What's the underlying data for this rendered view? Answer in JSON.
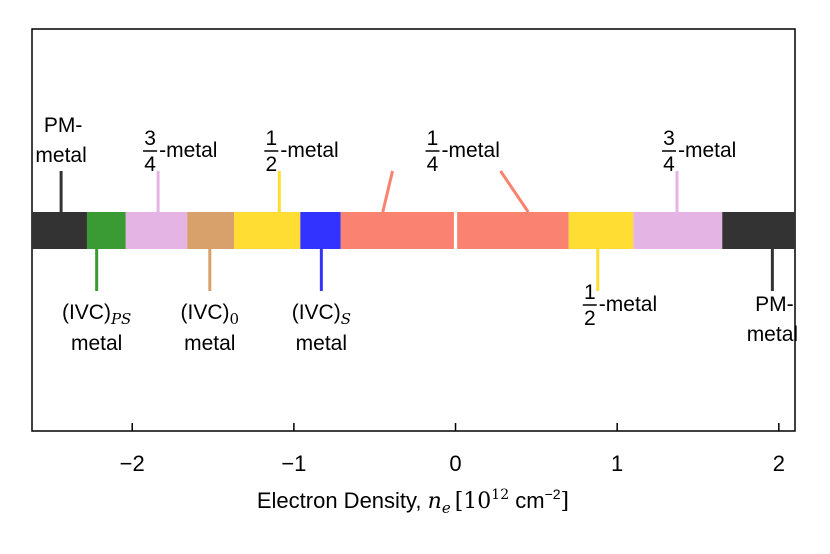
{
  "chart_data": {
    "type": "bar",
    "xlabel_text": "Electron Density, ",
    "xlabel_var": "n",
    "xlabel_sub": "e",
    "xlabel_unit_open": "[10",
    "xlabel_unit_exp": "12",
    "xlabel_unit_mid": " cm",
    "xlabel_unit_exp2": "−2",
    "xlabel_unit_close": "]",
    "xlim": [
      -2.62,
      2.1
    ],
    "ylim": [
      0,
      1
    ],
    "grid": false,
    "ticks": [
      {
        "value": -2,
        "label": "−2"
      },
      {
        "value": -1,
        "label": "−1"
      },
      {
        "value": 0,
        "label": "0"
      },
      {
        "value": 1,
        "label": "1"
      },
      {
        "value": 2,
        "label": "2"
      }
    ],
    "segments": [
      {
        "start": -2.62,
        "end": -2.28,
        "color": "#333333",
        "phase": "PM-metal"
      },
      {
        "start": -2.28,
        "end": -2.04,
        "color": "#3a9a34",
        "phase": "(IVC)PS metal"
      },
      {
        "start": -2.04,
        "end": -1.66,
        "color": "#e4b4e4",
        "phase": "3/4-metal"
      },
      {
        "start": -1.66,
        "end": -1.37,
        "color": "#d8a06a",
        "phase": "(IVC)0 metal"
      },
      {
        "start": -1.37,
        "end": -0.96,
        "color": "#ffdd33",
        "phase": "1/2-metal"
      },
      {
        "start": -0.96,
        "end": -0.71,
        "color": "#3333ff",
        "phase": "(IVC)S metal"
      },
      {
        "start": -0.71,
        "end": -0.01,
        "color": "#fa8270",
        "phase": "1/4-metal"
      },
      {
        "start": 0.01,
        "end": 0.7,
        "color": "#fa8270",
        "phase": "1/4-metal"
      },
      {
        "start": 0.7,
        "end": 1.1,
        "color": "#ffdd33",
        "phase": "1/2-metal"
      },
      {
        "start": 1.1,
        "end": 1.65,
        "color": "#e4b4e4",
        "phase": "3/4-metal"
      },
      {
        "start": 1.65,
        "end": 2.1,
        "color": "#333333",
        "phase": "PM-metal"
      }
    ],
    "annotations": [
      {
        "id": "pm-left",
        "side": "above",
        "x": -2.44,
        "color": "#333333",
        "line1": "PM-",
        "line2": "metal"
      },
      {
        "id": "three-quarter-left",
        "side": "above",
        "x": -1.84,
        "color": "#e4b4e4",
        "num": "3",
        "den": "4",
        "suffix": "-metal"
      },
      {
        "id": "half-left",
        "side": "above",
        "x": -1.09,
        "color": "#ffdd33",
        "num": "1",
        "den": "2",
        "suffix": "-metal"
      },
      {
        "id": "quarter",
        "side": "above",
        "x": 0.0,
        "color": "#fa8270",
        "num": "1",
        "den": "4",
        "suffix": "-metal"
      },
      {
        "id": "three-quarter-right",
        "side": "above",
        "x": 1.37,
        "color": "#e4b4e4",
        "num": "3",
        "den": "4",
        "suffix": "-metal"
      },
      {
        "id": "ivc-ps",
        "side": "below",
        "x": -2.22,
        "color": "#3a9a34",
        "base": "(IVC)",
        "sub": "PS",
        "line2": "metal"
      },
      {
        "id": "ivc-0",
        "side": "below",
        "x": -1.52,
        "color": "#d8a06a",
        "base": "(IVC)",
        "sub": "0",
        "line2": "metal"
      },
      {
        "id": "ivc-s",
        "side": "below",
        "x": -0.83,
        "color": "#3333ff",
        "base": "(IVC)",
        "sub": "S",
        "line2": "metal"
      },
      {
        "id": "half-right",
        "side": "below",
        "x": 0.88,
        "color": "#ffdd33",
        "num": "1",
        "den": "2",
        "suffix": "-metal"
      },
      {
        "id": "pm-right",
        "side": "below",
        "x": 1.96,
        "color": "#333333",
        "line1": "PM-",
        "line2": "metal"
      }
    ]
  }
}
